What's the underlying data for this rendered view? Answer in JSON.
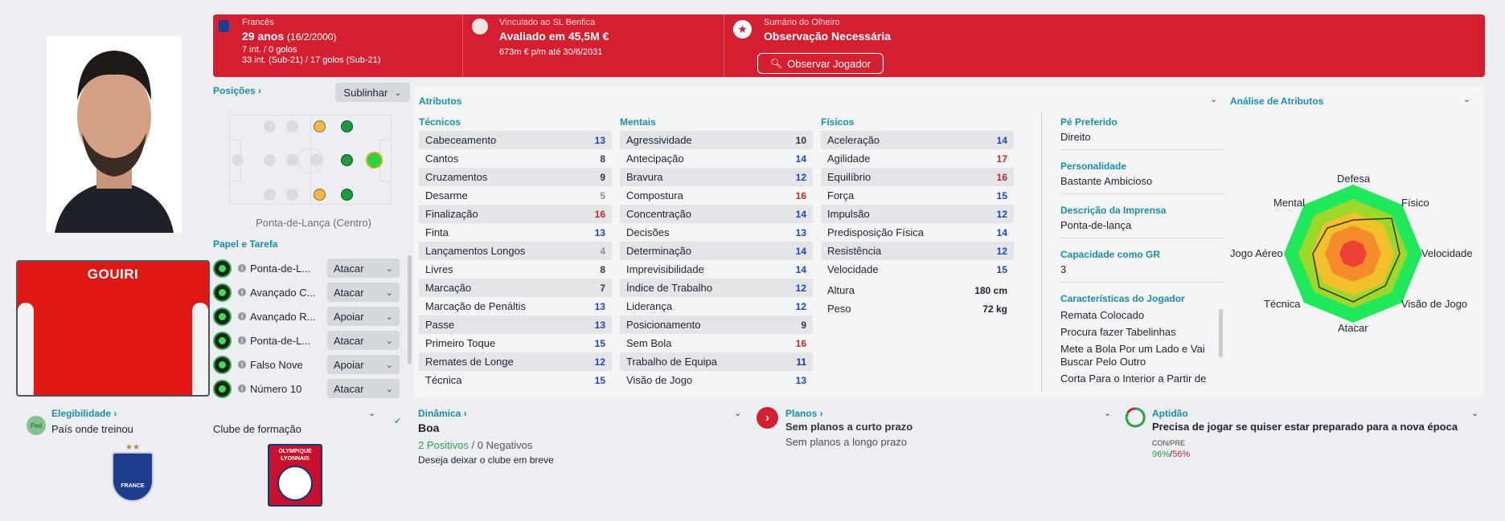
{
  "header": {
    "nationality": {
      "label": "Francês",
      "age": "29 anos",
      "dob": "(16/2/2000)",
      "caps": "7 int. / 0 golos",
      "youth_caps": "33 int. (Sub-21) / 17 golos (Sub-21)"
    },
    "value": {
      "label": "Vinculado ao SL Benfica",
      "value": "Avaliado em 45,5M €",
      "contract": "673m € p/m até 30/6/2031"
    },
    "scout": {
      "label": "Sumário do Olheiro",
      "status": "Observação Necessária",
      "button": "Observar Jogador"
    }
  },
  "kit": {
    "name": "GOUIRI"
  },
  "positions": {
    "title": "Posições",
    "button": "Sublinhar",
    "caption": "Ponta-de-Lança (Centro)"
  },
  "roles": {
    "title": "Papel e Tarefa",
    "items": [
      {
        "name": "Ponta-de-L...",
        "duty": "Atacar"
      },
      {
        "name": "Avançado C...",
        "duty": "Atacar"
      },
      {
        "name": "Avançado R...",
        "duty": "Apoiar"
      },
      {
        "name": "Ponta-de-L...",
        "duty": "Atacar"
      },
      {
        "name": "Falso Nove",
        "duty": "Apoiar"
      },
      {
        "name": "Número 10",
        "duty": "Atacar"
      }
    ]
  },
  "eligibility": {
    "title": "Elegibilidade",
    "badge": "Ped",
    "text": "País onde treinou",
    "club_label": "Clube de formação",
    "club_logo_text": "OLYMPIQUE LYONNAIS",
    "flag_logo_text": "FRANCE"
  },
  "attributes": {
    "title": "Atributos",
    "technical": {
      "title": "Técnicos",
      "rows": [
        {
          "name": "Cabeceamento",
          "value": "13",
          "c": "b"
        },
        {
          "name": "Cantos",
          "value": "8",
          "c": "n"
        },
        {
          "name": "Cruzamentos",
          "value": "9",
          "c": "n"
        },
        {
          "name": "Desarme",
          "value": "5",
          "c": "gr"
        },
        {
          "name": "Finalização",
          "value": "16",
          "c": "r"
        },
        {
          "name": "Finta",
          "value": "13",
          "c": "b"
        },
        {
          "name": "Lançamentos Longos",
          "value": "4",
          "c": "gr"
        },
        {
          "name": "Livres",
          "value": "8",
          "c": "n"
        },
        {
          "name": "Marcação",
          "value": "7",
          "c": "n"
        },
        {
          "name": "Marcação de Penáltis",
          "value": "13",
          "c": "b"
        },
        {
          "name": "Passe",
          "value": "13",
          "c": "b"
        },
        {
          "name": "Primeiro Toque",
          "value": "15",
          "c": "b"
        },
        {
          "name": "Remates de Longe",
          "value": "12",
          "c": "b"
        },
        {
          "name": "Técnica",
          "value": "15",
          "c": "b"
        }
      ]
    },
    "mental": {
      "title": "Mentais",
      "rows": [
        {
          "name": "Agressividade",
          "value": "10",
          "c": "n"
        },
        {
          "name": "Antecipação",
          "value": "14",
          "c": "b"
        },
        {
          "name": "Bravura",
          "value": "12",
          "c": "b"
        },
        {
          "name": "Compostura",
          "value": "16",
          "c": "r"
        },
        {
          "name": "Concentração",
          "value": "14",
          "c": "b"
        },
        {
          "name": "Decisões",
          "value": "13",
          "c": "b"
        },
        {
          "name": "Determinação",
          "value": "14",
          "c": "b"
        },
        {
          "name": "Imprevisibilidade",
          "value": "14",
          "c": "b"
        },
        {
          "name": "Índice de Trabalho",
          "value": "12",
          "c": "b"
        },
        {
          "name": "Liderança",
          "value": "12",
          "c": "b"
        },
        {
          "name": "Posicionamento",
          "value": "9",
          "c": "n"
        },
        {
          "name": "Sem Bola",
          "value": "16",
          "c": "r"
        },
        {
          "name": "Trabalho de Equipa",
          "value": "11",
          "c": "db"
        },
        {
          "name": "Visão de Jogo",
          "value": "13",
          "c": "b"
        }
      ]
    },
    "physical": {
      "title": "Físicos",
      "rows": [
        {
          "name": "Aceleração",
          "value": "14",
          "c": "b"
        },
        {
          "name": "Agilidade",
          "value": "17",
          "c": "r"
        },
        {
          "name": "Equilíbrio",
          "value": "16",
          "c": "r"
        },
        {
          "name": "Força",
          "value": "15",
          "c": "b"
        },
        {
          "name": "Impulsão",
          "value": "12",
          "c": "b"
        },
        {
          "name": "Predisposição Física",
          "value": "14",
          "c": "b"
        },
        {
          "name": "Resistência",
          "value": "12",
          "c": "b"
        },
        {
          "name": "Velocidade",
          "value": "15",
          "c": "b"
        }
      ],
      "height_label": "Altura",
      "height": "180 cm",
      "weight_label": "Peso",
      "weight": "72 kg"
    }
  },
  "info": {
    "foot_label": "Pé Preferido",
    "foot": "Direito",
    "personality_label": "Personalidade",
    "personality": "Bastante Ambicioso",
    "press_label": "Descrição da Imprensa",
    "press": "Ponta-de-lança",
    "gk_label": "Capacidade como GR",
    "gk": "3",
    "traits_label": "Características do Jogador",
    "traits": [
      "Remata Colocado",
      "Procura fazer Tabelinhas",
      "Mete a Bola Por um Lado e Vai Buscar Pelo Outro",
      "Corta Para o Interior a Partir de"
    ]
  },
  "analysis": {
    "title": "Análise de Atributos",
    "labels": [
      "Defesa",
      "Físico",
      "Velocidade",
      "Visão de Jogo",
      "Atacar",
      "Técnica",
      "Jogo Aéreo",
      "Mental"
    ]
  },
  "dynamics": {
    "title": "Dinâmica",
    "value": "Boa",
    "positives": "2 Positivos",
    "sep": "/",
    "negatives": "0 Negativos",
    "note": "Deseja deixar o clube em breve"
  },
  "plans": {
    "title": "Planos",
    "short": "Sem planos a curto prazo",
    "long": "Sem planos a longo prazo"
  },
  "fitness": {
    "title": "Aptidão",
    "text": "Precisa de jogar se quiser estar preparado para a nova época",
    "con_label": "CON/PRE",
    "con": "96%",
    "sep": "/",
    "pre": "56%"
  },
  "colors": {
    "header": "#d31f30",
    "accent": "#1a8ea8",
    "high": "#d91f26",
    "mid": "#1747c9"
  }
}
